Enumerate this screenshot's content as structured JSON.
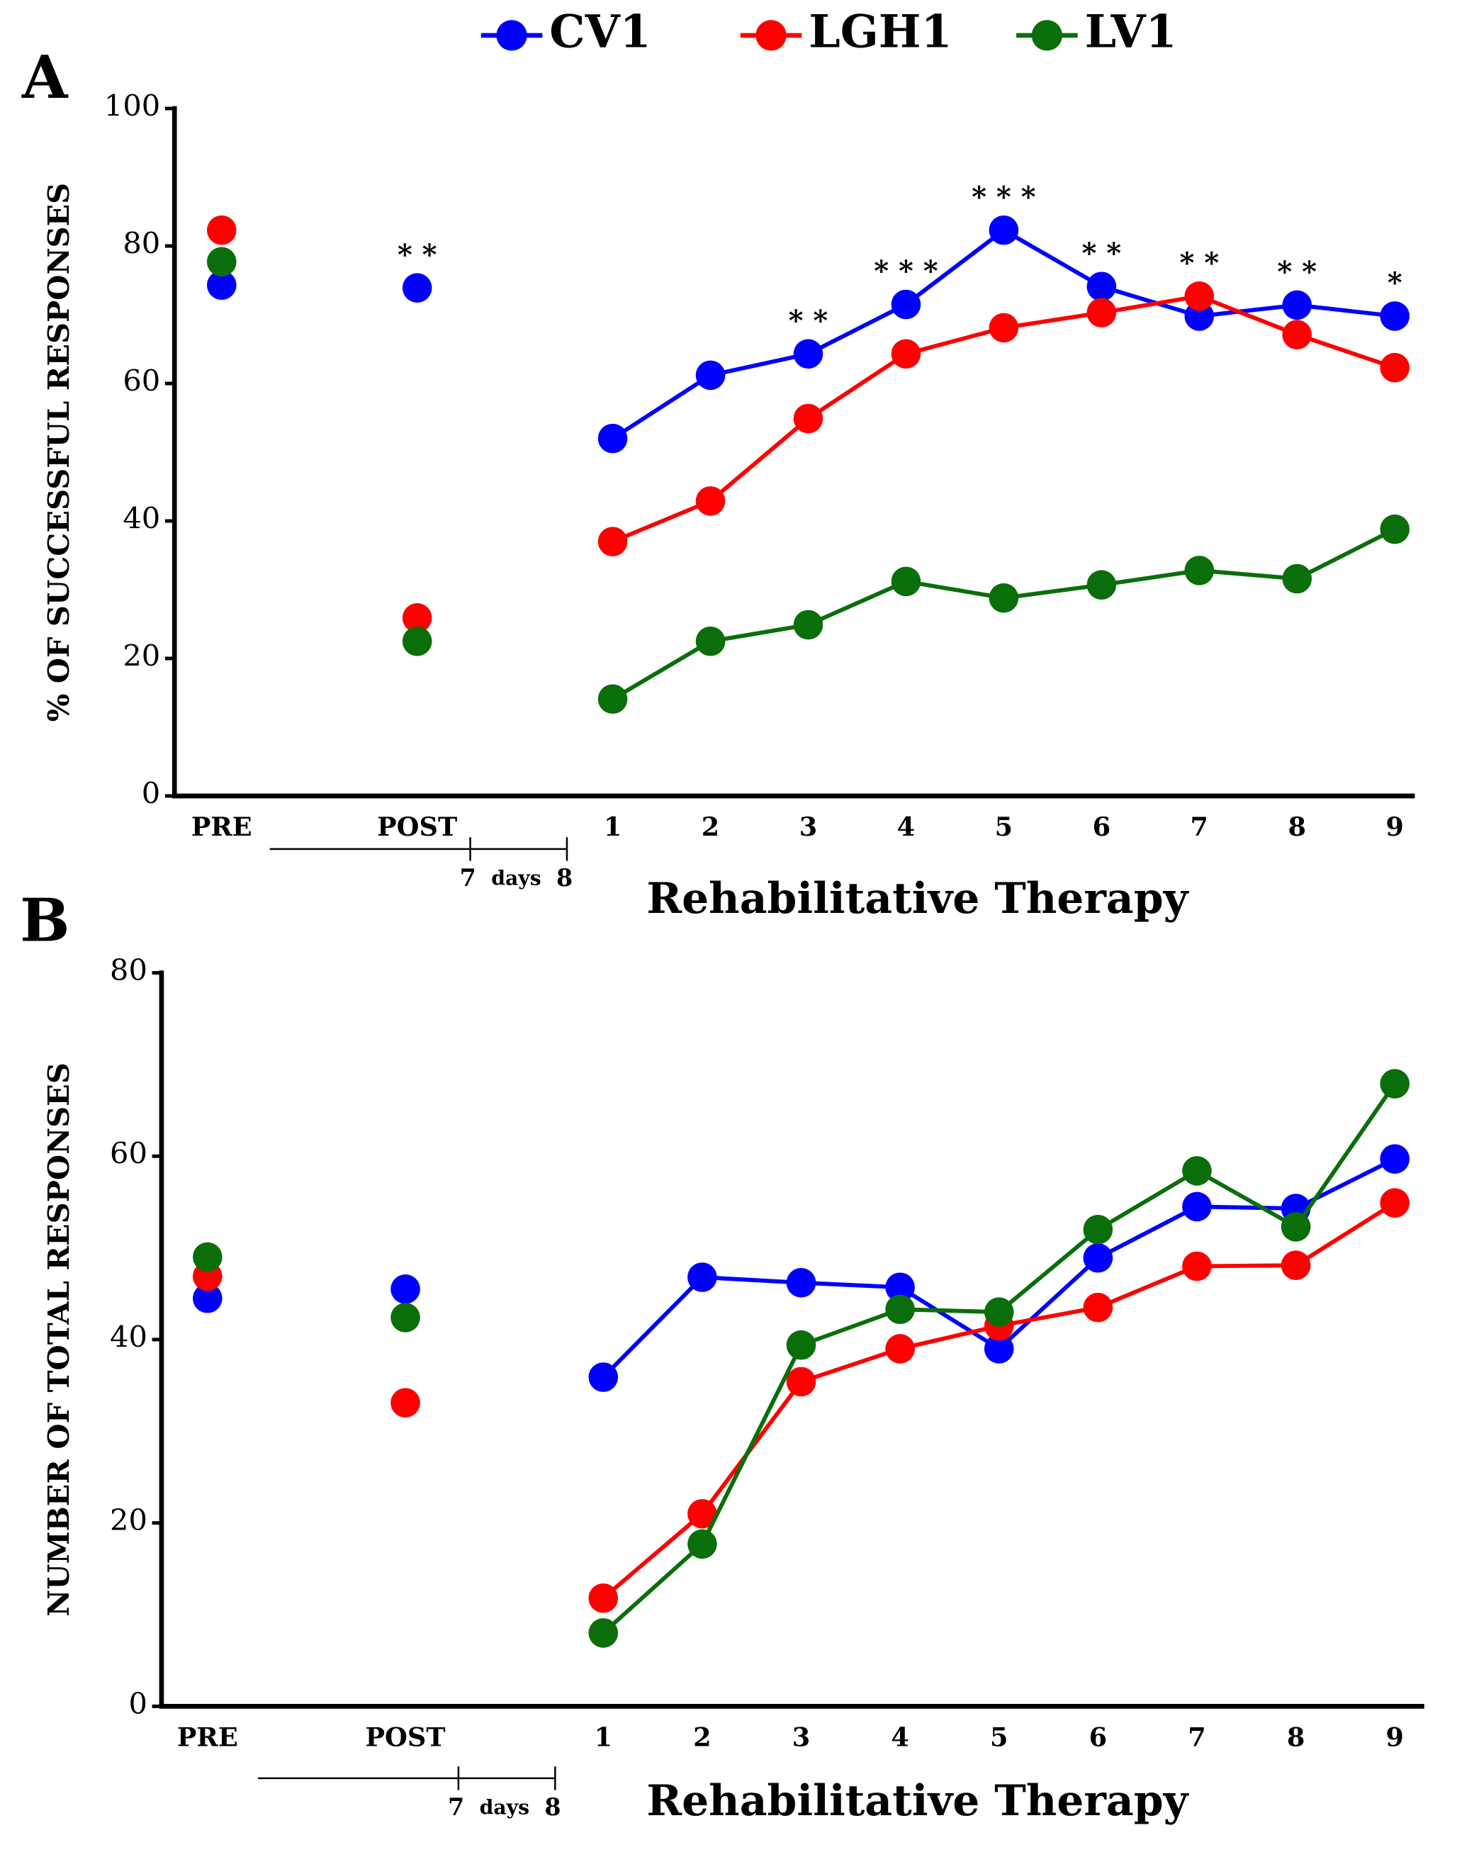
{
  "chart_data": [
    {
      "type": "line",
      "title": "A",
      "y_label": "% OF SUCCESSFUL RESPONSES",
      "x_label": "Rehabilitative Therapy",
      "categories": [
        "PRE",
        null,
        "POST",
        null,
        "1",
        "2",
        "3",
        "4",
        "5",
        "6",
        "7",
        "8",
        "9"
      ],
      "ylim": [
        0,
        100
      ],
      "yticks": [
        0,
        20,
        40,
        60,
        80,
        100
      ],
      "day_ticks": [
        7,
        8
      ],
      "day_unit": "days",
      "series": [
        {
          "name": "CV1",
          "color": "#0000ff",
          "values": [
            74.3,
            null,
            73.9,
            null,
            52,
            61.2,
            64.3,
            71.5,
            82.3,
            74.1,
            69.8,
            71.4,
            69.8
          ]
        },
        {
          "name": "LGH1",
          "color": "#ff0000",
          "values": [
            82.3,
            null,
            25.9,
            null,
            37,
            42.9,
            54.9,
            64.3,
            68.1,
            70.3,
            72.7,
            67.1,
            62.3
          ]
        },
        {
          "name": "LV1",
          "color": "#0a6e0a",
          "values": [
            77.7,
            null,
            22.5,
            null,
            14.1,
            22.5,
            24.9,
            31.2,
            28.8,
            30.7,
            32.8,
            31.6,
            38.8
          ],
          "annotations": [
            null,
            null,
            "* *",
            null,
            null,
            null,
            "* *",
            "* * *",
            "* * *",
            "* *",
            "* *",
            "* *",
            "*"
          ]
        }
      ]
    },
    {
      "type": "line",
      "title": "B",
      "y_label": "NUMBER OF TOTAL RESPONSES",
      "x_label": "Rehabilitative Therapy",
      "categories": [
        "PRE",
        null,
        "POST",
        null,
        "1",
        "2",
        "3",
        "4",
        "5",
        "6",
        "7",
        "8",
        "9"
      ],
      "ylim": [
        0,
        80
      ],
      "yticks": [
        0,
        20,
        40,
        60,
        80
      ],
      "day_ticks": [
        7,
        8
      ],
      "day_unit": "days",
      "series": [
        {
          "color": "#0000ff",
          "values": [
            44.5,
            null,
            45.5,
            null,
            35.9,
            46.8,
            46.2,
            45.7,
            39,
            48.9,
            54.5,
            54.3,
            59.7
          ]
        },
        {
          "color": "#ff0000",
          "values": [
            46.9,
            null,
            33.1,
            null,
            11.8,
            21,
            35.4,
            39,
            41.5,
            43.5,
            48,
            48.1,
            54.9
          ]
        },
        {
          "color": "#0a6e0a",
          "values": [
            49,
            null,
            42.4,
            null,
            8,
            17.7,
            39.4,
            43.3,
            43,
            52,
            58.4,
            52.3,
            67.9
          ]
        }
      ]
    }
  ]
}
